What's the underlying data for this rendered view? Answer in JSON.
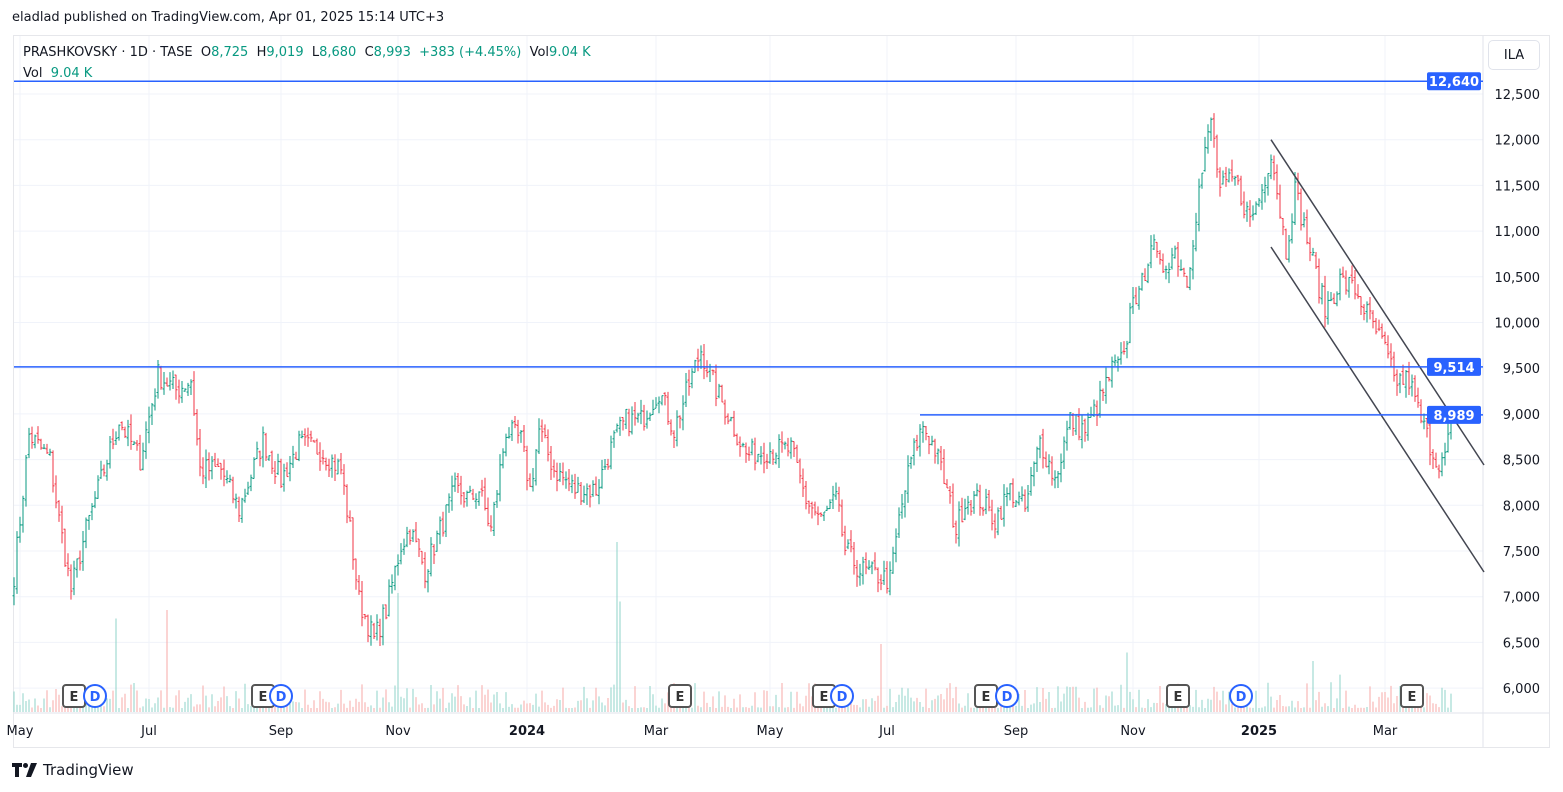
{
  "publisher_line": "eladlad published on TradingView.com, Apr 01, 2025 15:14 UTC+3",
  "legend": {
    "symbol": "PRASHKOVSKY · 1D · TASE",
    "o_label": "O",
    "o": "8,725",
    "h_label": "H",
    "h": "9,019",
    "l_label": "L",
    "l": "8,680",
    "c_label": "C",
    "c": "8,993",
    "change": "+383 (+4.45%)",
    "vol_label": "Vol",
    "vol": "9.04 K"
  },
  "volume_legend": {
    "label": "Vol",
    "value": "9.04 K"
  },
  "currency": "ILA",
  "brand": "TradingView",
  "colors": {
    "up": "#089981",
    "down": "#f23645",
    "up_vol": "#8fd3c8",
    "down_vol": "#f7a9a7",
    "level": "#2962ff",
    "trend": "#434651"
  },
  "chart_data": {
    "type": "ohlc",
    "title": "PRASHKOVSKY · 1D · TASE",
    "ylim": [
      5750,
      12900
    ],
    "yticks": [
      "6,000",
      "6,500",
      "7,000",
      "7,500",
      "8,000",
      "8,500",
      "9,000",
      "9,500",
      "10,000",
      "10,500",
      "11,000",
      "11,500",
      "12,000",
      "12,500"
    ],
    "ytick_values": [
      6000,
      6500,
      7000,
      7500,
      8000,
      8500,
      9000,
      9500,
      10000,
      10500,
      11000,
      11500,
      12000,
      12500
    ],
    "x_unit": "trading day index",
    "xlim": [
      0,
      490
    ],
    "xticks": [
      {
        "day": 2,
        "label": "May",
        "bold": false
      },
      {
        "day": 45,
        "label": "Jul",
        "bold": false
      },
      {
        "day": 89,
        "label": "Sep",
        "bold": false
      },
      {
        "day": 128,
        "label": "Nov",
        "bold": false
      },
      {
        "day": 171,
        "label": "2024",
        "bold": true
      },
      {
        "day": 214,
        "label": "Mar",
        "bold": false
      },
      {
        "day": 252,
        "label": "May",
        "bold": false
      },
      {
        "day": 291,
        "label": "Jul",
        "bold": false
      },
      {
        "day": 334,
        "label": "Sep",
        "bold": false
      },
      {
        "day": 373,
        "label": "Nov",
        "bold": false
      },
      {
        "day": 415,
        "label": "2025",
        "bold": true
      },
      {
        "day": 457,
        "label": "Mar",
        "bold": false
      }
    ],
    "close_path": [
      [
        0,
        7240
      ],
      [
        2,
        7840
      ],
      [
        5,
        8770
      ],
      [
        12,
        8500
      ],
      [
        15,
        7840
      ],
      [
        19,
        7070
      ],
      [
        24,
        7730
      ],
      [
        29,
        8280
      ],
      [
        35,
        8930
      ],
      [
        42,
        8500
      ],
      [
        48,
        9430
      ],
      [
        54,
        9260
      ],
      [
        59,
        9370
      ],
      [
        62,
        8390
      ],
      [
        69,
        8390
      ],
      [
        75,
        7950
      ],
      [
        83,
        8710
      ],
      [
        89,
        8280
      ],
      [
        95,
        8660
      ],
      [
        102,
        8610
      ],
      [
        109,
        8390
      ],
      [
        112,
        7730
      ],
      [
        115,
        6960
      ],
      [
        120,
        6530
      ],
      [
        124,
        6850
      ],
      [
        129,
        7570
      ],
      [
        132,
        7730
      ],
      [
        137,
        7290
      ],
      [
        142,
        7730
      ],
      [
        147,
        8170
      ],
      [
        152,
        8060
      ],
      [
        155,
        8170
      ],
      [
        159,
        7730
      ],
      [
        164,
        8820
      ],
      [
        169,
        8710
      ],
      [
        172,
        8170
      ],
      [
        175,
        8820
      ],
      [
        180,
        8390
      ],
      [
        187,
        8170
      ],
      [
        194,
        8170
      ],
      [
        200,
        8710
      ],
      [
        204,
        8930
      ],
      [
        209,
        8930
      ],
      [
        215,
        9260
      ],
      [
        220,
        8820
      ],
      [
        225,
        9320
      ],
      [
        229,
        9700
      ],
      [
        234,
        9260
      ],
      [
        239,
        8930
      ],
      [
        244,
        8550
      ],
      [
        252,
        8610
      ],
      [
        259,
        8610
      ],
      [
        264,
        8060
      ],
      [
        269,
        7840
      ],
      [
        274,
        8060
      ],
      [
        277,
        7510
      ],
      [
        282,
        7290
      ],
      [
        287,
        7240
      ],
      [
        292,
        7180
      ],
      [
        295,
        7840
      ],
      [
        299,
        8500
      ],
      [
        303,
        8880
      ],
      [
        307,
        8610
      ],
      [
        310,
        8280
      ],
      [
        314,
        7730
      ],
      [
        317,
        8060
      ],
      [
        322,
        8060
      ],
      [
        327,
        7840
      ],
      [
        332,
        8170
      ],
      [
        337,
        7950
      ],
      [
        342,
        8710
      ],
      [
        347,
        8280
      ],
      [
        352,
        8930
      ],
      [
        357,
        8820
      ],
      [
        362,
        9150
      ],
      [
        366,
        9480
      ],
      [
        370,
        9590
      ],
      [
        373,
        10360
      ],
      [
        375,
        10250
      ],
      [
        379,
        10900
      ],
      [
        382,
        10570
      ],
      [
        387,
        10790
      ],
      [
        391,
        10460
      ],
      [
        395,
        11450
      ],
      [
        399,
        12220
      ],
      [
        402,
        11450
      ],
      [
        407,
        11560
      ],
      [
        412,
        11120
      ],
      [
        416,
        11450
      ],
      [
        419,
        11890
      ],
      [
        424,
        10790
      ],
      [
        427,
        11450
      ],
      [
        432,
        10790
      ],
      [
        437,
        10140
      ],
      [
        442,
        10460
      ],
      [
        447,
        10360
      ],
      [
        452,
        10030
      ],
      [
        457,
        9700
      ],
      [
        460,
        9370
      ],
      [
        465,
        9370
      ],
      [
        469,
        8930
      ],
      [
        474,
        8500
      ],
      [
        477,
        8500
      ],
      [
        479,
        8993
      ]
    ],
    "volume_spikes": [
      [
        34,
        0.55
      ],
      [
        51,
        0.6
      ],
      [
        128,
        0.7
      ],
      [
        201,
        1.0
      ],
      [
        202,
        0.65
      ],
      [
        289,
        0.4
      ],
      [
        371,
        0.35
      ],
      [
        433,
        0.3
      ],
      [
        442,
        0.22
      ]
    ],
    "horizontal_levels": [
      {
        "price": 12640,
        "label": "12,640",
        "from_day": 0
      },
      {
        "price": 9514,
        "label": "9,514",
        "from_day": 0
      },
      {
        "price": 8989,
        "label": "8,989",
        "from_day": 302
      }
    ],
    "trend_lines": [
      {
        "name": "channel-upper",
        "from": [
          419,
          12000
        ],
        "to": [
          490,
          8441
        ]
      },
      {
        "name": "channel-lower",
        "from": [
          419,
          10826
        ],
        "to": [
          490,
          7270
        ]
      }
    ],
    "events": [
      {
        "day": 20,
        "type": "E"
      },
      {
        "day": 27,
        "type": "D"
      },
      {
        "day": 83,
        "type": "E"
      },
      {
        "day": 89,
        "type": "D"
      },
      {
        "day": 222,
        "type": "E"
      },
      {
        "day": 270,
        "type": "E"
      },
      {
        "day": 276,
        "type": "D"
      },
      {
        "day": 324,
        "type": "E"
      },
      {
        "day": 331,
        "type": "D"
      },
      {
        "day": 388,
        "type": "E"
      },
      {
        "day": 409,
        "type": "D"
      },
      {
        "day": 466,
        "type": "E"
      }
    ]
  }
}
